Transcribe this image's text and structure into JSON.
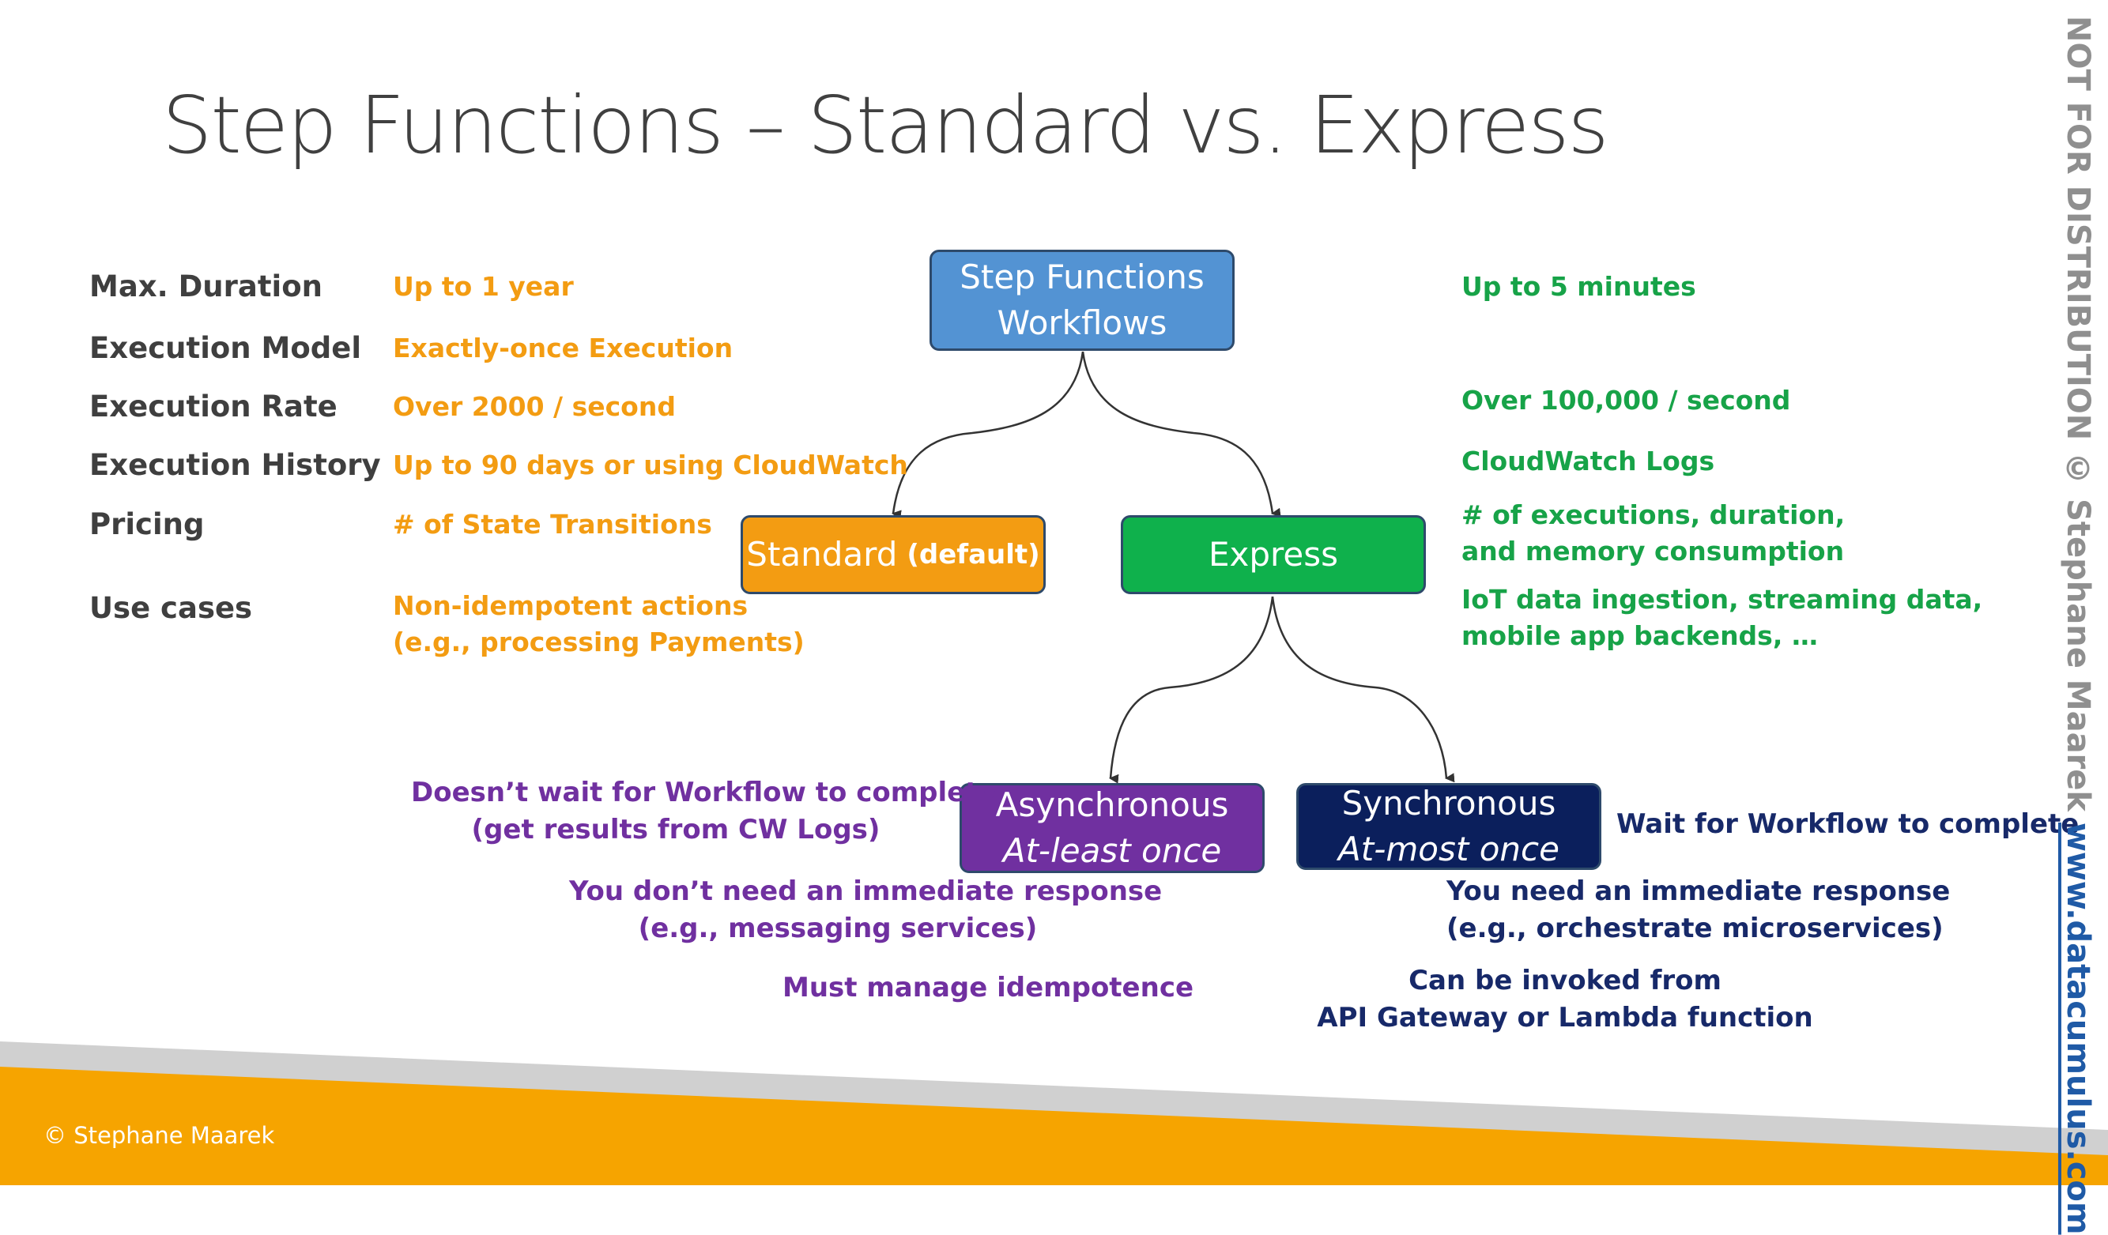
{
  "slide": {
    "title": "Step Functions – Standard vs. Express",
    "footer_copyright": "© Stephane Maarek",
    "watermark_text": "NOT FOR DISTRIBUTION © Stephane Maarek ",
    "watermark_url": "www.datacumulus.com"
  },
  "labels": [
    "Max. Duration",
    "Execution Model",
    "Execution Rate",
    "Execution History",
    "Pricing",
    "Use cases"
  ],
  "standard_col": {
    "max_duration": "Up to 1 year",
    "execution_model": "Exactly-once Execution",
    "execution_rate": "Over 2000 / second",
    "execution_history": "Up to 90 days or using CloudWatch",
    "pricing": "# of State Transitions",
    "use_cases_1": "Non-idempotent actions",
    "use_cases_2": "(e.g., processing Payments)"
  },
  "express_col": {
    "max_duration": "Up to 5 minutes",
    "execution_rate": "Over 100,000 / second",
    "execution_history": "CloudWatch Logs",
    "pricing_1": "# of executions, duration,",
    "pricing_2": "and memory consumption",
    "use_cases_1": "IoT data ingestion, streaming data,",
    "use_cases_2": "mobile app backends, …"
  },
  "boxes": {
    "root_line1": "Step Functions",
    "root_line2": "Workflows",
    "standard": "Standard",
    "standard_suffix": "(default)",
    "express": "Express",
    "async_line1": "Asynchronous",
    "async_line2": "At-least once",
    "sync_line1": "Synchronous",
    "sync_line2": "At-most once"
  },
  "async_notes": {
    "n1_line1": "Doesn’t wait for Workflow to complete",
    "n1_line2": "(get results from CW Logs)",
    "n2_line1": "You don’t need an immediate response",
    "n2_line2": "(e.g., messaging services)",
    "n3": "Must manage idempotence"
  },
  "sync_notes": {
    "n1": "Wait for Workflow to complete",
    "n2_line1": "You need an immediate response",
    "n2_line2": "(e.g., orchestrate microservices)",
    "n3_line1": "Can be invoked from",
    "n3_line2": "API Gateway or Lambda function"
  },
  "colors": {
    "standard_orange": "#f39c12",
    "express_green": "#17a348",
    "root_blue": "#5393d3",
    "async_purple": "#7030a0",
    "sync_navy": "#0b1f5c",
    "footer_orange": "#f6a400"
  }
}
